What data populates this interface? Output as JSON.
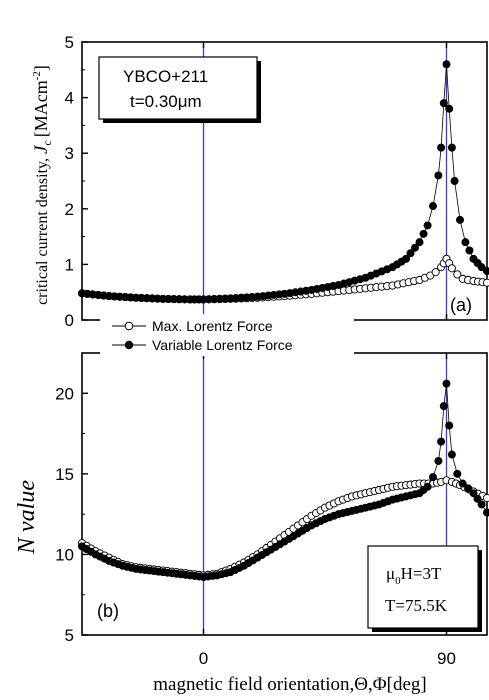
{
  "figure": {
    "xlabel": "magnetic field orientation,Θ,Φ[deg]",
    "xticks": [
      {
        "value": 0,
        "label": "0"
      },
      {
        "value": 90,
        "label": "90"
      }
    ],
    "xlim": [
      -45,
      105
    ],
    "guide_lines_x": [
      0,
      90
    ],
    "colors": {
      "guide": "#3a3adf",
      "marker": "#000000",
      "axis": "#000000"
    }
  },
  "legend": {
    "placement": "between panels, top-left",
    "entries": [
      {
        "name": "Max. Lorentz Force",
        "marker": "open-circle"
      },
      {
        "name": "Variable Lorentz Force",
        "marker": "filled-circle"
      }
    ]
  },
  "chart_data": [
    {
      "type": "scatter",
      "panel_label": "(a)",
      "annotation": {
        "line1": "YBCO+211",
        "line2": "t=0.30μm"
      },
      "ylabel": {
        "main": "critical current density, ",
        "symbol": "J",
        "sub": "c",
        "units": "[MAcm",
        "units_sup": "-2",
        "units_close": "]"
      },
      "ylim": [
        0,
        5
      ],
      "yticks": [
        0,
        1,
        2,
        3,
        4,
        5
      ],
      "xlim": [
        -45,
        105
      ],
      "grid": false,
      "series": [
        {
          "name": "Max. Lorentz Force",
          "marker": "open",
          "points": [
            [
              -45,
              0.48
            ],
            [
              -35,
              0.43
            ],
            [
              -25,
              0.4
            ],
            [
              -15,
              0.38
            ],
            [
              -5,
              0.37
            ],
            [
              0,
              0.37
            ],
            [
              10,
              0.38
            ],
            [
              20,
              0.4
            ],
            [
              30,
              0.43
            ],
            [
              40,
              0.47
            ],
            [
              50,
              0.52
            ],
            [
              60,
              0.57
            ],
            [
              70,
              0.62
            ],
            [
              80,
              0.72
            ],
            [
              84,
              0.8
            ],
            [
              86,
              0.86
            ],
            [
              88,
              0.95
            ],
            [
              89,
              1.02
            ],
            [
              90,
              1.1
            ],
            [
              91,
              1.02
            ],
            [
              92,
              0.93
            ],
            [
              94,
              0.82
            ],
            [
              96,
              0.74
            ],
            [
              100,
              0.7
            ],
            [
              105,
              0.67
            ]
          ]
        },
        {
          "name": "Variable Lorentz Force",
          "marker": "filled",
          "points": [
            [
              -45,
              0.48
            ],
            [
              -35,
              0.43
            ],
            [
              -25,
              0.4
            ],
            [
              -15,
              0.38
            ],
            [
              -5,
              0.37
            ],
            [
              0,
              0.37
            ],
            [
              10,
              0.39
            ],
            [
              20,
              0.42
            ],
            [
              30,
              0.47
            ],
            [
              40,
              0.54
            ],
            [
              50,
              0.63
            ],
            [
              60,
              0.76
            ],
            [
              70,
              0.95
            ],
            [
              75,
              1.1
            ],
            [
              80,
              1.4
            ],
            [
              83,
              1.7
            ],
            [
              85,
              2.05
            ],
            [
              87,
              2.6
            ],
            [
              88,
              3.1
            ],
            [
              89,
              3.9
            ],
            [
              90,
              4.6
            ],
            [
              91,
              3.8
            ],
            [
              92,
              3.1
            ],
            [
              93,
              2.5
            ],
            [
              95,
              1.8
            ],
            [
              97,
              1.4
            ],
            [
              100,
              1.1
            ],
            [
              103,
              0.95
            ],
            [
              105,
              0.88
            ]
          ]
        }
      ]
    },
    {
      "type": "scatter",
      "panel_label": "(b)",
      "annotation": {
        "line1_mu": "μ",
        "line1_sub": "0",
        "line1_rest": "H=3T",
        "line2": "T=75.5K"
      },
      "ylabel": {
        "main": "N value"
      },
      "ylim": [
        5,
        22.5
      ],
      "yticks": [
        5,
        10,
        15,
        20
      ],
      "xlim": [
        -45,
        105
      ],
      "grid": false,
      "series": [
        {
          "name": "Max. Lorentz Force",
          "marker": "open",
          "points": [
            [
              -45,
              10.7
            ],
            [
              -40,
              10.2
            ],
            [
              -35,
              9.8
            ],
            [
              -30,
              9.4
            ],
            [
              -25,
              9.2
            ],
            [
              -20,
              9.1
            ],
            [
              -15,
              9.0
            ],
            [
              -10,
              8.9
            ],
            [
              -5,
              8.8
            ],
            [
              0,
              8.7
            ],
            [
              5,
              8.8
            ],
            [
              10,
              9.1
            ],
            [
              15,
              9.5
            ],
            [
              20,
              10.0
            ],
            [
              25,
              10.6
            ],
            [
              30,
              11.2
            ],
            [
              35,
              11.8
            ],
            [
              40,
              12.4
            ],
            [
              45,
              12.9
            ],
            [
              50,
              13.3
            ],
            [
              55,
              13.6
            ],
            [
              60,
              13.8
            ],
            [
              65,
              14.0
            ],
            [
              70,
              14.2
            ],
            [
              75,
              14.3
            ],
            [
              80,
              14.4
            ],
            [
              85,
              14.4
            ],
            [
              88,
              14.5
            ],
            [
              90,
              14.6
            ],
            [
              92,
              14.5
            ],
            [
              95,
              14.3
            ],
            [
              100,
              13.9
            ],
            [
              105,
              13.5
            ]
          ]
        },
        {
          "name": "Variable Lorentz Force",
          "marker": "filled",
          "points": [
            [
              -45,
              10.5
            ],
            [
              -40,
              10.0
            ],
            [
              -35,
              9.6
            ],
            [
              -30,
              9.3
            ],
            [
              -25,
              9.1
            ],
            [
              -20,
              9.0
            ],
            [
              -15,
              8.9
            ],
            [
              -10,
              8.8
            ],
            [
              -5,
              8.7
            ],
            [
              0,
              8.6
            ],
            [
              5,
              8.7
            ],
            [
              10,
              8.9
            ],
            [
              15,
              9.3
            ],
            [
              20,
              9.8
            ],
            [
              25,
              10.3
            ],
            [
              30,
              10.8
            ],
            [
              35,
              11.3
            ],
            [
              40,
              11.8
            ],
            [
              45,
              12.2
            ],
            [
              50,
              12.5
            ],
            [
              55,
              12.7
            ],
            [
              60,
              12.9
            ],
            [
              65,
              13.1
            ],
            [
              70,
              13.4
            ],
            [
              75,
              13.6
            ],
            [
              80,
              13.8
            ],
            [
              83,
              14.2
            ],
            [
              85,
              14.8
            ],
            [
              87,
              15.8
            ],
            [
              88,
              17.0
            ],
            [
              89,
              19.2
            ],
            [
              90,
              20.6
            ],
            [
              91,
              18.0
            ],
            [
              92,
              16.2
            ],
            [
              94,
              15.0
            ],
            [
              96,
              14.4
            ],
            [
              100,
              13.8
            ],
            [
              103,
              13.1
            ],
            [
              105,
              12.6
            ]
          ]
        }
      ]
    }
  ]
}
